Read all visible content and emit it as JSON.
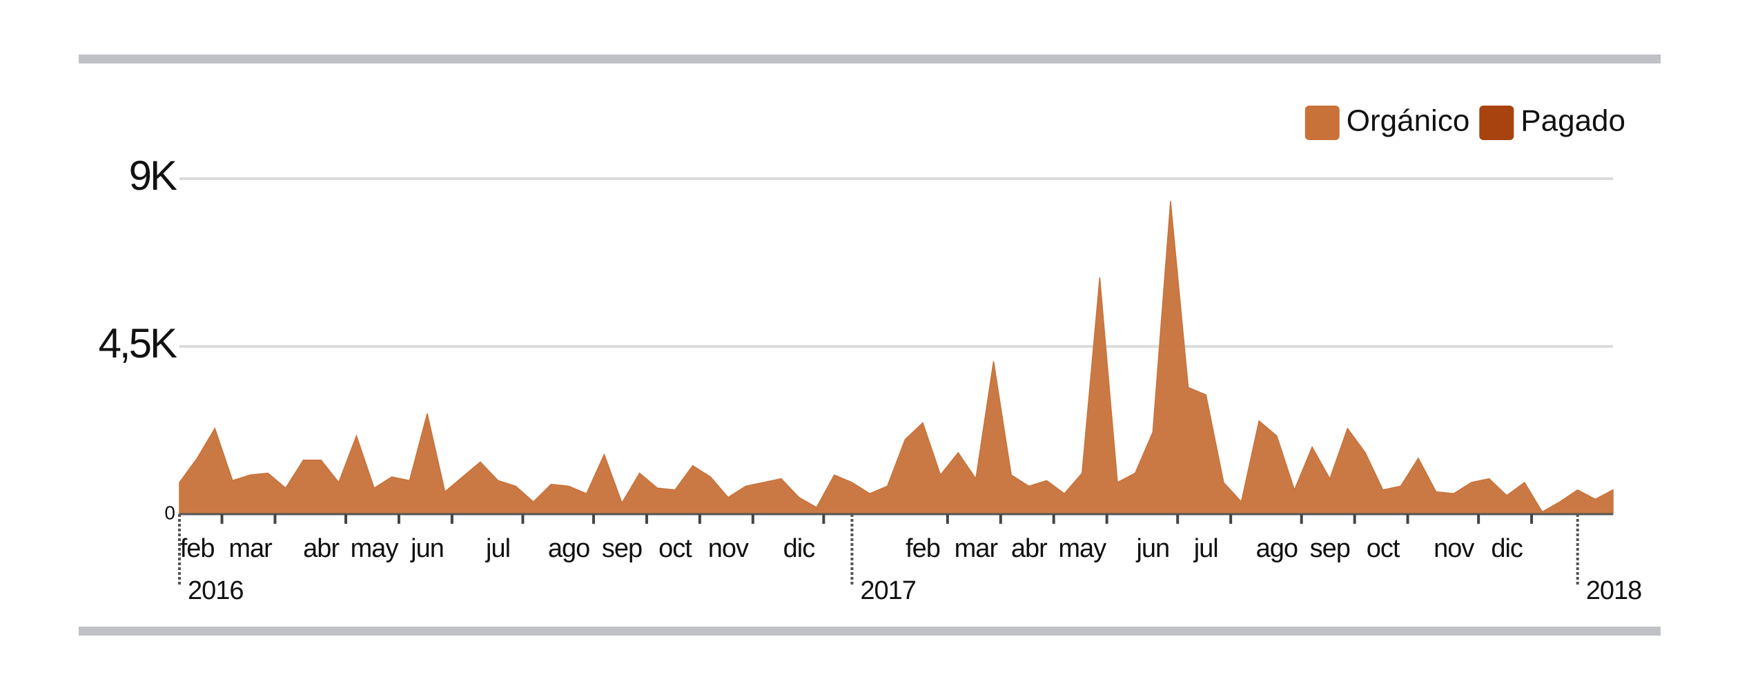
{
  "chart_data": {
    "type": "area",
    "categories": [
      null,
      "feb",
      null,
      null,
      "mar",
      null,
      null,
      null,
      "abr",
      null,
      null,
      "may",
      null,
      null,
      "jun",
      null,
      null,
      null,
      "jul",
      null,
      null,
      null,
      "ago",
      null,
      null,
      "sep",
      null,
      null,
      "oct",
      null,
      null,
      "nov",
      null,
      null,
      null,
      "dic",
      null,
      null,
      null,
      null,
      null,
      null,
      "feb",
      null,
      null,
      "mar",
      null,
      null,
      "abr",
      null,
      null,
      "may",
      null,
      null,
      null,
      "jun",
      null,
      null,
      "jul",
      null,
      null,
      null,
      "ago",
      null,
      null,
      "sep",
      null,
      null,
      "oct",
      null,
      null,
      null,
      "nov",
      null,
      null,
      "dic",
      null,
      null,
      null,
      null,
      null,
      null
    ],
    "year_ticks": [
      {
        "value": 0,
        "label": "2016"
      },
      {
        "value": 38,
        "label": "2017"
      },
      {
        "value": 79,
        "label": "2018"
      }
    ],
    "series": [
      {
        "name": "Orgánico",
        "color": "#c8723a",
        "values": [
          850,
          1500,
          2300,
          900,
          1050,
          1100,
          700,
          1450,
          1450,
          850,
          2100,
          700,
          1000,
          900,
          2700,
          600,
          1000,
          1400,
          900,
          750,
          330,
          800,
          750,
          550,
          1600,
          300,
          1100,
          700,
          650,
          1300,
          1000,
          450,
          750,
          850,
          950,
          450,
          180,
          1050,
          850,
          550,
          750,
          2000,
          2450,
          1050,
          1650,
          950,
          4100,
          1050,
          750,
          900,
          550,
          1100,
          6350,
          850,
          1100,
          2200,
          8400,
          3400,
          3200,
          850,
          330,
          2500,
          2100,
          650,
          1800,
          950,
          2300,
          1650,
          650,
          750,
          1500,
          600,
          550,
          850,
          950,
          500,
          850,
          60,
          330,
          650,
          400,
          650
        ]
      },
      {
        "name": "Pagado",
        "color": "#a8430f"
      }
    ],
    "ylim": [
      0,
      9000
    ],
    "yticks": [
      0,
      {
        "value": 4500,
        "label": "4,5K"
      },
      {
        "value": 9000,
        "label": "9K"
      }
    ],
    "grid": true
  }
}
